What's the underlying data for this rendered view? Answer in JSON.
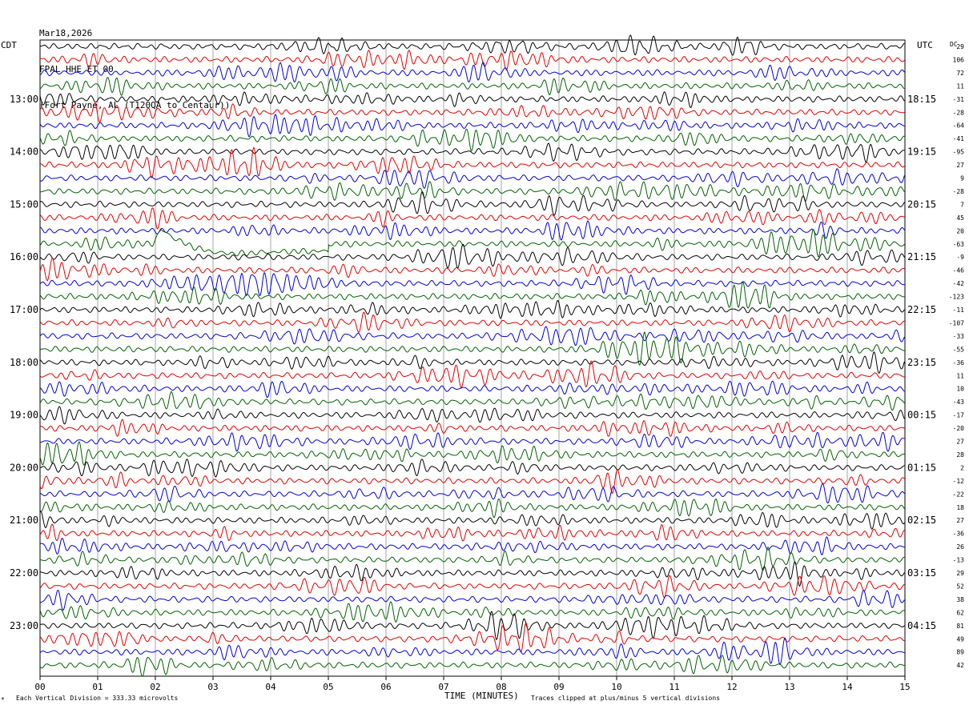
{
  "header": {
    "date": "Mar18,2026",
    "station": "FPAL HHE ET 00",
    "location": "(Fort Payne, AL (T120QA to Centaur))"
  },
  "left_timezone": "CDT",
  "right_timezone": "UTC",
  "dc_label": "DC",
  "footer": {
    "mark": "*",
    "division": "Each Vertical Division =  333.33 microvolts",
    "xlabel": "TIME (MINUTES)",
    "clip": "Traces clipped at plus/minus 5 vertical divisions"
  },
  "chart_data": {
    "type": "line",
    "title": "",
    "xlabel": "TIME (MINUTES)",
    "ylabel": "",
    "xlim": [
      0,
      15
    ],
    "x_ticks": [
      "00",
      "01",
      "02",
      "03",
      "04",
      "05",
      "06",
      "07",
      "08",
      "09",
      "10",
      "11",
      "12",
      "13",
      "14",
      "15"
    ],
    "grid": true,
    "trace_colors": [
      "#000000",
      "#e00000",
      "#0000d0",
      "#006000"
    ],
    "left_hour_labels": [
      "13:00",
      "14:00",
      "15:00",
      "16:00",
      "17:00",
      "18:00",
      "19:00",
      "20:00",
      "21:00",
      "22:00",
      "23:00"
    ],
    "right_hour_labels": [
      "18:15",
      "19:15",
      "20:15",
      "21:15",
      "22:15",
      "23:15",
      "00:15",
      "01:15",
      "02:15",
      "03:15",
      "04:15"
    ],
    "dc_offsets": [
      29,
      106,
      72,
      11,
      -31,
      -28,
      -64,
      -41,
      -95,
      27,
      9,
      -28,
      7,
      45,
      20,
      -63,
      -9,
      -46,
      -42,
      -123,
      -11,
      -107,
      -33,
      -55,
      -36,
      11,
      10,
      -43,
      -17,
      -20,
      27,
      28,
      2,
      -12,
      -22,
      18,
      27,
      -36,
      26,
      -13,
      29,
      52,
      38,
      62,
      81,
      49,
      89,
      42
    ],
    "event": {
      "trace_index": 15,
      "start_minute": 1.95,
      "peak_minute": 2.1,
      "end_minute": 5.0
    }
  }
}
